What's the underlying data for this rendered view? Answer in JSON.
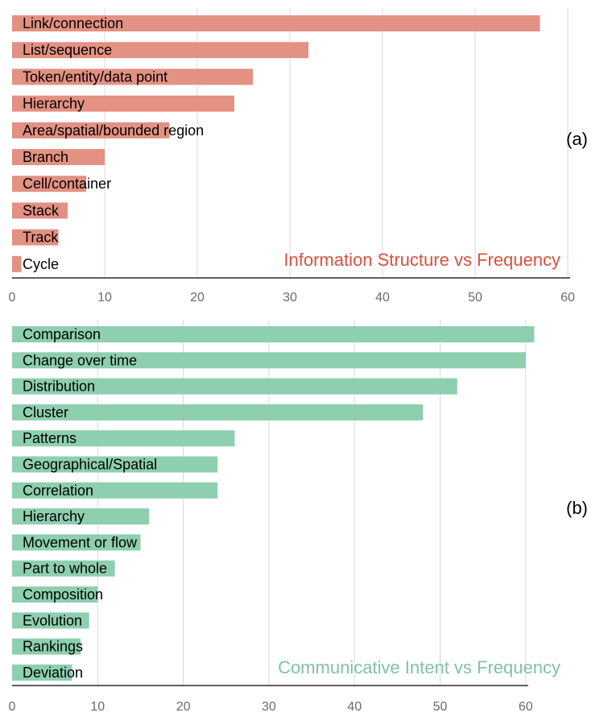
{
  "chart_data": [
    {
      "type": "bar",
      "orientation": "horizontal",
      "title": "Information Structure vs Frequency",
      "panel_label": "(a)",
      "color": "#e39182",
      "title_color": "#d9513f",
      "categories": [
        "Link/connection",
        "List/sequence",
        "Token/entity/data point",
        "Hierarchy",
        "Area/spatial/bounded region",
        "Branch",
        "Cell/container",
        "Stack",
        "Track",
        "Cycle"
      ],
      "values": [
        57,
        32,
        26,
        24,
        17,
        10,
        8,
        6,
        5,
        1
      ],
      "xlim": [
        0,
        60
      ],
      "xticks": [
        0,
        10,
        20,
        30,
        40,
        50,
        60
      ],
      "grid": true
    },
    {
      "type": "bar",
      "orientation": "horizontal",
      "title": "Communicative Intent vs Frequency",
      "panel_label": "(b)",
      "color": "#8dcfae",
      "title_color": "#7fc4a2",
      "categories": [
        "Comparison",
        "Change over time",
        "Distribution",
        "Cluster",
        "Patterns",
        "Geographical/Spatial",
        "Correlation",
        "Hierarchy",
        "Movement or flow",
        "Part to whole",
        "Composition",
        "Evolution",
        "Rankings",
        "Deviation"
      ],
      "values": [
        61,
        60,
        52,
        48,
        26,
        24,
        24,
        16,
        15,
        12,
        10,
        9,
        8,
        7
      ],
      "xlim": [
        0,
        65
      ],
      "xticks": [
        0,
        10,
        20,
        30,
        40,
        50,
        60
      ],
      "grid": true
    }
  ]
}
